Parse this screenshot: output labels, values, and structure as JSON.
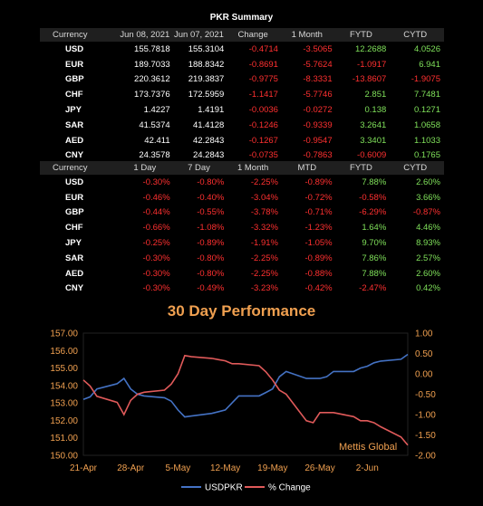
{
  "summary": {
    "title": "PKR Summary",
    "headers": [
      "Currency",
      "Jun 08, 2021",
      "Jun 07, 2021",
      "Change",
      "1 Month",
      "FYTD",
      "CYTD"
    ],
    "rows": [
      [
        "USD",
        "155.7818",
        "155.3104",
        "-0.4714",
        "-3.5065",
        "12.2688",
        "4.0526"
      ],
      [
        "EUR",
        "189.7033",
        "188.8342",
        "-0.8691",
        "-5.7624",
        "-1.0917",
        "6.941"
      ],
      [
        "GBP",
        "220.3612",
        "219.3837",
        "-0.9775",
        "-8.3331",
        "-13.8607",
        "-1.9075"
      ],
      [
        "CHF",
        "173.7376",
        "172.5959",
        "-1.1417",
        "-5.7746",
        "2.851",
        "7.7481"
      ],
      [
        "JPY",
        "1.4227",
        "1.4191",
        "-0.0036",
        "-0.0272",
        "0.138",
        "0.1271"
      ],
      [
        "SAR",
        "41.5374",
        "41.4128",
        "-0.1246",
        "-0.9339",
        "3.2641",
        "1.0658"
      ],
      [
        "AED",
        "42.411",
        "42.2843",
        "-0.1267",
        "-0.9547",
        "3.3401",
        "1.1033"
      ],
      [
        "CNY",
        "24.3578",
        "24.2843",
        "-0.0735",
        "-0.7863",
        "-0.6009",
        "0.1765"
      ]
    ]
  },
  "returns": {
    "headers": [
      "Currency",
      "1 Day",
      "7 Day",
      "1 Month",
      "MTD",
      "FYTD",
      "CYTD"
    ],
    "rows": [
      [
        "USD",
        "-0.30%",
        "-0.80%",
        "-2.25%",
        "-0.89%",
        "7.88%",
        "2.60%"
      ],
      [
        "EUR",
        "-0.46%",
        "-0.40%",
        "-3.04%",
        "-0.72%",
        "-0.58%",
        "3.66%"
      ],
      [
        "GBP",
        "-0.44%",
        "-0.55%",
        "-3.78%",
        "-0.71%",
        "-6.29%",
        "-0.87%"
      ],
      [
        "CHF",
        "-0.66%",
        "-1.08%",
        "-3.32%",
        "-1.23%",
        "1.64%",
        "4.46%"
      ],
      [
        "JPY",
        "-0.25%",
        "-0.89%",
        "-1.91%",
        "-1.05%",
        "9.70%",
        "8.93%"
      ],
      [
        "SAR",
        "-0.30%",
        "-0.80%",
        "-2.25%",
        "-0.89%",
        "7.86%",
        "2.57%"
      ],
      [
        "AED",
        "-0.30%",
        "-0.80%",
        "-2.25%",
        "-0.88%",
        "7.88%",
        "2.60%"
      ],
      [
        "CNY",
        "-0.30%",
        "-0.49%",
        "-3.23%",
        "-0.42%",
        "-2.47%",
        "0.42%"
      ]
    ]
  },
  "colors": {
    "usdpkr": "#4472c4",
    "pct": "#e05a5a",
    "accent": "#f0a050",
    "neg": "#ff3030",
    "pos": "#7fe05a"
  },
  "chart_data": {
    "type": "line",
    "title": "30 Day Performance",
    "watermark": "Mettis Global",
    "x_ticks": [
      "21-Apr",
      "28-Apr",
      "5-May",
      "12-May",
      "19-May",
      "26-May",
      "2-Jun"
    ],
    "x_range": [
      0,
      48
    ],
    "ylim_left": [
      150.0,
      157.0
    ],
    "y_ticks_left": [
      "150.00",
      "151.00",
      "152.00",
      "153.00",
      "154.00",
      "155.00",
      "156.00",
      "157.00"
    ],
    "ylim_right": [
      -2.0,
      1.0
    ],
    "y_ticks_right": [
      "-2.00",
      "-1.50",
      "-1.00",
      "-0.50",
      "0.00",
      "0.50",
      "1.00"
    ],
    "legend_position": "bottom",
    "series": [
      {
        "name": "USDPKR",
        "axis": "left",
        "x": [
          0,
          1,
          2,
          5,
          6,
          7,
          8,
          9,
          12,
          13,
          14,
          15,
          16,
          19,
          20,
          21,
          22,
          23,
          26,
          27,
          28,
          29,
          30,
          33,
          34,
          35,
          36,
          37,
          40,
          41,
          42,
          43,
          44,
          47,
          48
        ],
        "values": [
          153.2,
          153.35,
          153.8,
          154.1,
          154.4,
          153.8,
          153.5,
          153.4,
          153.3,
          153.1,
          152.6,
          152.2,
          152.25,
          152.4,
          152.5,
          152.6,
          153.0,
          153.4,
          153.4,
          153.6,
          153.8,
          154.5,
          154.8,
          154.4,
          154.4,
          154.4,
          154.5,
          154.8,
          154.8,
          155.0,
          155.1,
          155.3,
          155.4,
          155.5,
          155.78
        ]
      },
      {
        "name": "% Change",
        "axis": "right",
        "x": [
          0,
          1,
          2,
          5,
          6,
          7,
          8,
          9,
          12,
          13,
          14,
          15,
          16,
          19,
          20,
          21,
          22,
          23,
          26,
          27,
          28,
          29,
          30,
          33,
          34,
          35,
          36,
          37,
          40,
          41,
          42,
          43,
          44,
          47,
          48
        ],
        "values": [
          -0.15,
          -0.3,
          -0.55,
          -0.7,
          -1.0,
          -0.65,
          -0.5,
          -0.45,
          -0.4,
          -0.25,
          0.0,
          0.45,
          0.42,
          0.38,
          0.35,
          0.32,
          0.25,
          0.25,
          0.2,
          0.05,
          -0.15,
          -0.4,
          -0.5,
          -1.15,
          -1.2,
          -0.95,
          -0.95,
          -0.95,
          -1.05,
          -1.15,
          -1.15,
          -1.2,
          -1.3,
          -1.55,
          -1.75
        ]
      }
    ]
  }
}
